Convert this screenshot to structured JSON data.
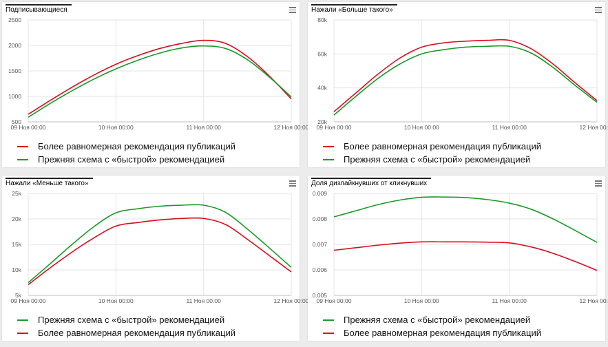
{
  "colors": {
    "red": "#dd0b1e",
    "green": "#189a26",
    "grid": "#e3e3e3",
    "axis": "#bfbfbf"
  },
  "chart_data": [
    {
      "type": "line",
      "title": "Подписывающиеся",
      "x_ticks": [
        "09 Ноя 00:00",
        "10 Ноя 00:00",
        "11 Ноя 00:00",
        "12 Ноя 00:00"
      ],
      "x": [
        0,
        0.25,
        0.5,
        0.75,
        1,
        1.25,
        1.5,
        1.75,
        2,
        2.25,
        2.5,
        2.75,
        3
      ],
      "y_ticks": [
        500,
        1000,
        1500,
        2000,
        2500
      ],
      "y_tick_labels": [
        "500",
        "1000",
        "1500",
        "2000",
        "2500"
      ],
      "ylim": [
        500,
        2500
      ],
      "series": [
        {
          "name": "Более равномерная рекомендация публикаций",
          "color": "red",
          "values": [
            650,
            920,
            1180,
            1420,
            1630,
            1800,
            1940,
            2040,
            2100,
            2040,
            1780,
            1400,
            950
          ]
        },
        {
          "name": "Прежняя схема с «быстрой» рекомендацией",
          "color": "green",
          "values": [
            590,
            860,
            1110,
            1340,
            1540,
            1710,
            1850,
            1950,
            1990,
            1940,
            1720,
            1380,
            990
          ]
        }
      ],
      "legend": [
        {
          "label": "Более равномерная рекомендация публикаций",
          "color": "red"
        },
        {
          "label": "Прежняя схема с «быстрой» рекомендацией",
          "color": "green"
        }
      ]
    },
    {
      "type": "line",
      "title": "Нажали «Больше такого»",
      "x_ticks": [
        "09 Ноя 00:00",
        "10 Ноя 00:00",
        "11 Ноя 00:00",
        "12 Ноя 00:00"
      ],
      "x": [
        0,
        0.25,
        0.5,
        0.75,
        1,
        1.25,
        1.5,
        1.75,
        2,
        2.25,
        2.5,
        2.75,
        3
      ],
      "y_ticks": [
        20000,
        40000,
        60000,
        80000
      ],
      "y_tick_labels": [
        "20k",
        "40k",
        "60k",
        "80k"
      ],
      "ylim": [
        20000,
        80000
      ],
      "series": [
        {
          "name": "Более равномерная рекомендация публикаций",
          "color": "red",
          "values": [
            26000,
            37000,
            48000,
            57500,
            64000,
            66500,
            67500,
            68000,
            68000,
            63000,
            54000,
            43000,
            32500
          ]
        },
        {
          "name": "Прежняя схема с «быстрой» рекомендацией",
          "color": "green",
          "values": [
            24000,
            35000,
            45500,
            54000,
            60000,
            62500,
            64000,
            64500,
            64500,
            60500,
            52000,
            41500,
            31500
          ]
        }
      ],
      "legend": [
        {
          "label": "Более равномерная рекомендация публикаций",
          "color": "red"
        },
        {
          "label": "Прежняя схема с «быстрой» рекомендацией",
          "color": "green"
        }
      ]
    },
    {
      "type": "line",
      "title": "Нажали «Меньше такого»",
      "x_ticks": [
        "09 Ноя 00:00",
        "10 Ноя 00:00",
        "11 Ноя 00:00",
        "12 Ноя 00:00"
      ],
      "x": [
        0,
        0.25,
        0.5,
        0.75,
        1,
        1.25,
        1.5,
        1.75,
        2,
        2.25,
        2.5,
        2.75,
        3
      ],
      "y_ticks": [
        5000,
        10000,
        15000,
        20000,
        25000
      ],
      "y_tick_labels": [
        "5k",
        "10k",
        "15k",
        "20k",
        "25k"
      ],
      "ylim": [
        5000,
        25000
      ],
      "series": [
        {
          "name": "Прежняя схема с «быстрой» рекомендацией",
          "color": "green",
          "values": [
            7500,
            11200,
            15000,
            18500,
            21200,
            22000,
            22500,
            22700,
            22700,
            21300,
            18000,
            14300,
            10500
          ]
        },
        {
          "name": "Более равномерная рекомендация публикаций",
          "color": "red",
          "values": [
            7100,
            10400,
            13500,
            16300,
            18600,
            19300,
            19800,
            20100,
            20100,
            18900,
            16000,
            12800,
            9600
          ]
        }
      ],
      "legend": [
        {
          "label": "Прежняя схема с «быстрой» рекомендацией",
          "color": "green"
        },
        {
          "label": "Более равномерная рекомендация публикаций",
          "color": "red"
        }
      ]
    },
    {
      "type": "line",
      "title": "Доля дизлайкнувших от кликнувших",
      "x_ticks": [
        "09 Ноя 00:00",
        "10 Ноя 00:00",
        "11 Ноя 00:00",
        "12 Ноя 00:00"
      ],
      "x": [
        0,
        0.25,
        0.5,
        0.75,
        1,
        1.25,
        1.5,
        1.75,
        2,
        2.25,
        2.5,
        2.75,
        3
      ],
      "y_ticks": [
        0.005,
        0.006,
        0.007,
        0.008,
        0.009
      ],
      "y_tick_labels": [
        "0.005",
        "0.006",
        "0.007",
        "0.008",
        "0.009"
      ],
      "ylim": [
        0.005,
        0.009
      ],
      "series": [
        {
          "name": "Прежняя схема с «быстрой» рекомендацией",
          "color": "green",
          "values": [
            0.00808,
            0.00832,
            0.00856,
            0.00874,
            0.00885,
            0.00886,
            0.00884,
            0.00876,
            0.00862,
            0.00838,
            0.008,
            0.00755,
            0.00708
          ]
        },
        {
          "name": "Более равномерная рекомендация публикаций",
          "color": "red",
          "values": [
            0.00677,
            0.00687,
            0.00697,
            0.00705,
            0.0071,
            0.0071,
            0.0071,
            0.00709,
            0.00706,
            0.0069,
            0.00665,
            0.00633,
            0.00598
          ]
        }
      ],
      "legend": [
        {
          "label": "Прежняя схема с «быстрой» рекомендацией",
          "color": "green"
        },
        {
          "label": "Более равномерная рекомендация публикаций",
          "color": "red"
        }
      ]
    }
  ]
}
